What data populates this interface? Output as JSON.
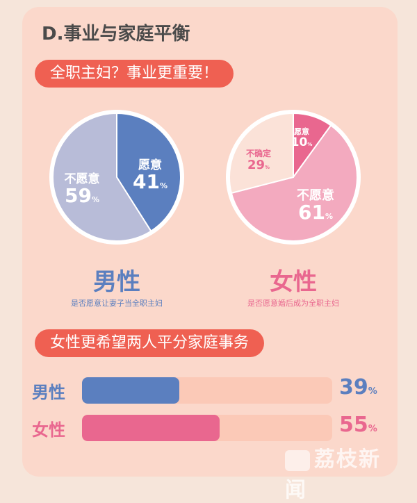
{
  "section_title": "D.事业与家庭平衡",
  "subtitle1": "全职主妇？事业更重要！",
  "subtitle2": "女性更希望两人平分家庭事务",
  "colors": {
    "male_dark": "#5b7fbf",
    "male_light": "#b8bcd8",
    "female_dark": "#e9678f",
    "female_mid": "#f3aabf",
    "female_light": "#fbe2d8",
    "bar_track": "#fbc9b7"
  },
  "chart_data": [
    {
      "type": "pie",
      "title": "男性",
      "subtitle": "是否愿意让妻子当全职主妇",
      "slices": [
        {
          "label": "愿意",
          "value": 41,
          "pct_text": "41",
          "color": "#5b7fbf",
          "text_color": "#ffffff"
        },
        {
          "label": "不愿意",
          "value": 59,
          "pct_text": "59",
          "color": "#b8bcd8",
          "text_color": "#ffffff"
        }
      ]
    },
    {
      "type": "pie",
      "title": "女性",
      "subtitle": "是否愿意婚后成为全职主妇",
      "slices": [
        {
          "label": "愿意",
          "value": 10,
          "pct_text": "10",
          "color": "#e9678f",
          "text_color": "#ffffff"
        },
        {
          "label": "不愿意",
          "value": 61,
          "pct_text": "61",
          "color": "#f3aabf",
          "text_color": "#ffffff"
        },
        {
          "label": "不确定",
          "value": 29,
          "pct_text": "29",
          "color": "#fbe2d8",
          "text_color": "#e9678f"
        }
      ]
    },
    {
      "type": "bar",
      "orientation": "horizontal",
      "categories": [
        "男性",
        "女性"
      ],
      "values": [
        39,
        55
      ],
      "ylim": [
        0,
        100
      ],
      "colors": [
        "#5b7fbf",
        "#e9678f"
      ]
    }
  ],
  "percent_sign": "%",
  "watermark": "荔枝新闻"
}
